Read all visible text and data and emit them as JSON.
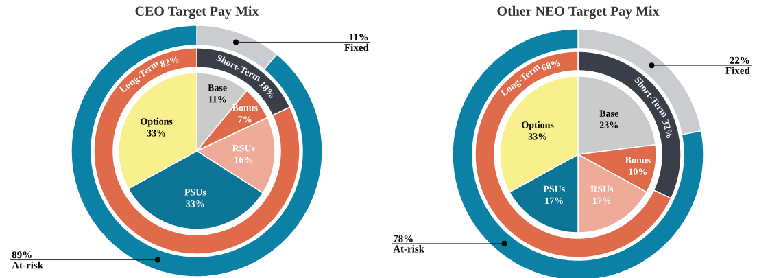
{
  "chart_data": [
    {
      "type": "pie",
      "title": "CEO Target Pay Mix",
      "categories": [
        "Base",
        "Bonus",
        "RSUs",
        "PSUs",
        "Options"
      ],
      "values": [
        11,
        7,
        16,
        33,
        33
      ],
      "value_labels": [
        "11%",
        "7%",
        "16%",
        "33%",
        "33%"
      ],
      "colors": [
        "#cbcbcb",
        "#e06b4a",
        "#eeab9a",
        "#0c7595",
        "#f8f08c"
      ]
    },
    {
      "type": "donut",
      "categories": [
        "Short-Term",
        "Long-Term"
      ],
      "values": [
        18,
        82
      ],
      "value_labels": [
        "18%",
        "82%"
      ],
      "colors": [
        "#393e48",
        "#e06b4a"
      ]
    },
    {
      "type": "donut",
      "categories": [
        "Fixed",
        "At-risk"
      ],
      "values": [
        11,
        89
      ],
      "value_labels": [
        "11%",
        "89%"
      ],
      "colors": [
        "#cbcccf",
        "#0a81a5"
      ]
    },
    {
      "type": "pie",
      "title": "Other NEO Target Pay Mix",
      "categories": [
        "Base",
        "Bonus",
        "RSUs",
        "PSUs",
        "Options"
      ],
      "values": [
        23,
        10,
        17,
        17,
        33
      ],
      "value_labels": [
        "23%",
        "10%",
        "17%",
        "17%",
        "33%"
      ],
      "colors": [
        "#cbcbcb",
        "#e06b4a",
        "#eeab9a",
        "#0c7595",
        "#f8f08c"
      ]
    },
    {
      "type": "donut",
      "categories": [
        "Short-Term",
        "Long-Term"
      ],
      "values": [
        32,
        68
      ],
      "value_labels": [
        "32%",
        "68%"
      ],
      "colors": [
        "#393e48",
        "#e06b4a"
      ]
    },
    {
      "type": "donut",
      "categories": [
        "Fixed",
        "At-risk"
      ],
      "values": [
        22,
        78
      ],
      "value_labels": [
        "22%",
        "78%"
      ],
      "colors": [
        "#cbcccf",
        "#0a81a5"
      ]
    }
  ]
}
